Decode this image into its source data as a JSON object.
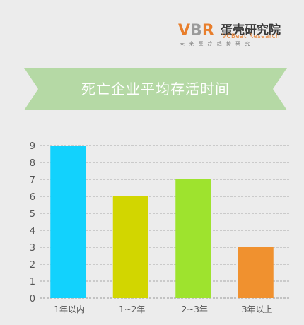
{
  "logo": {
    "mark": "VBR",
    "name_cn": "蛋壳研究院",
    "name_en": "VCBeat Research",
    "tagline": "未来医疗趋势研究"
  },
  "colors": {
    "banner": "#b5d9a5",
    "grid": "#a9a9a9",
    "axis_text": "#555555",
    "logo_v": "#e87e2c",
    "logo_b": "#9a9a9a",
    "logo_r": "#e87e2c"
  },
  "chart_data": {
    "type": "bar",
    "title": "死亡企业平均存活时间",
    "categories": [
      "1年以内",
      "1~2年",
      "2~3年",
      "3年以上"
    ],
    "values": [
      9,
      6,
      7,
      3
    ],
    "bar_colors": [
      "#12d2fd",
      "#d2d600",
      "#9ee32e",
      "#f0912f"
    ],
    "ylim": [
      0,
      9
    ],
    "yticks": [
      0,
      1,
      2,
      3,
      4,
      5,
      6,
      7,
      8,
      9
    ],
    "grid": true,
    "grid_style": "dashed",
    "xlabel": "",
    "ylabel": ""
  }
}
